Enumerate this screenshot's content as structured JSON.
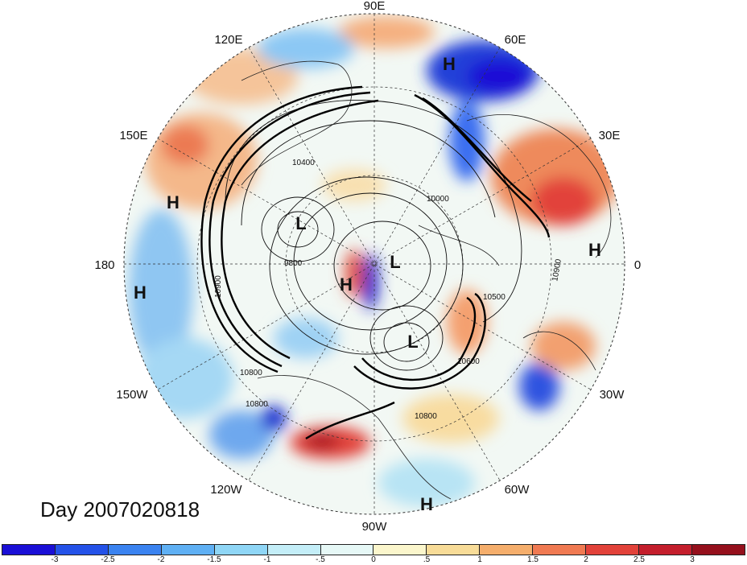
{
  "map": {
    "lon_labels": {
      "e90": "90E",
      "e120": "120E",
      "e60": "60E",
      "e150": "150E",
      "e30": "30E",
      "w180": "180",
      "zero": "0",
      "w150": "150W",
      "w30": "30W",
      "w120": "120W",
      "w60": "60W",
      "w90": "90W"
    },
    "pressure_centers": {
      "h1": "H",
      "h2": "H",
      "h3": "H",
      "h4": "H",
      "h5": "H",
      "h6": "H",
      "l1": "L",
      "l2": "L",
      "l3": "L"
    },
    "contour_labels": {
      "c1": "10400",
      "c2": "10000",
      "c3": "9800",
      "c4": "10900",
      "c5": "10800",
      "c6": "10500",
      "c7": "10600",
      "c8": "10800",
      "c9": "10900",
      "c10": "10800"
    }
  },
  "title": "Day 2007020818",
  "colorbar": {
    "colors": [
      "#1a0fd6",
      "#2452e8",
      "#3b83f0",
      "#5fb0f4",
      "#8fd6f6",
      "#c4eef8",
      "#e6f8f6",
      "#fbf6cc",
      "#f8dc98",
      "#f5ae6c",
      "#f07a52",
      "#e2423a",
      "#c41e2c",
      "#95101c"
    ],
    "ticks": [
      "-3",
      "-2.5",
      "-2",
      "-1.5",
      "-1",
      "-.5",
      "0",
      ".5",
      "1",
      "1.5",
      "2",
      "2.5",
      "3"
    ]
  }
}
